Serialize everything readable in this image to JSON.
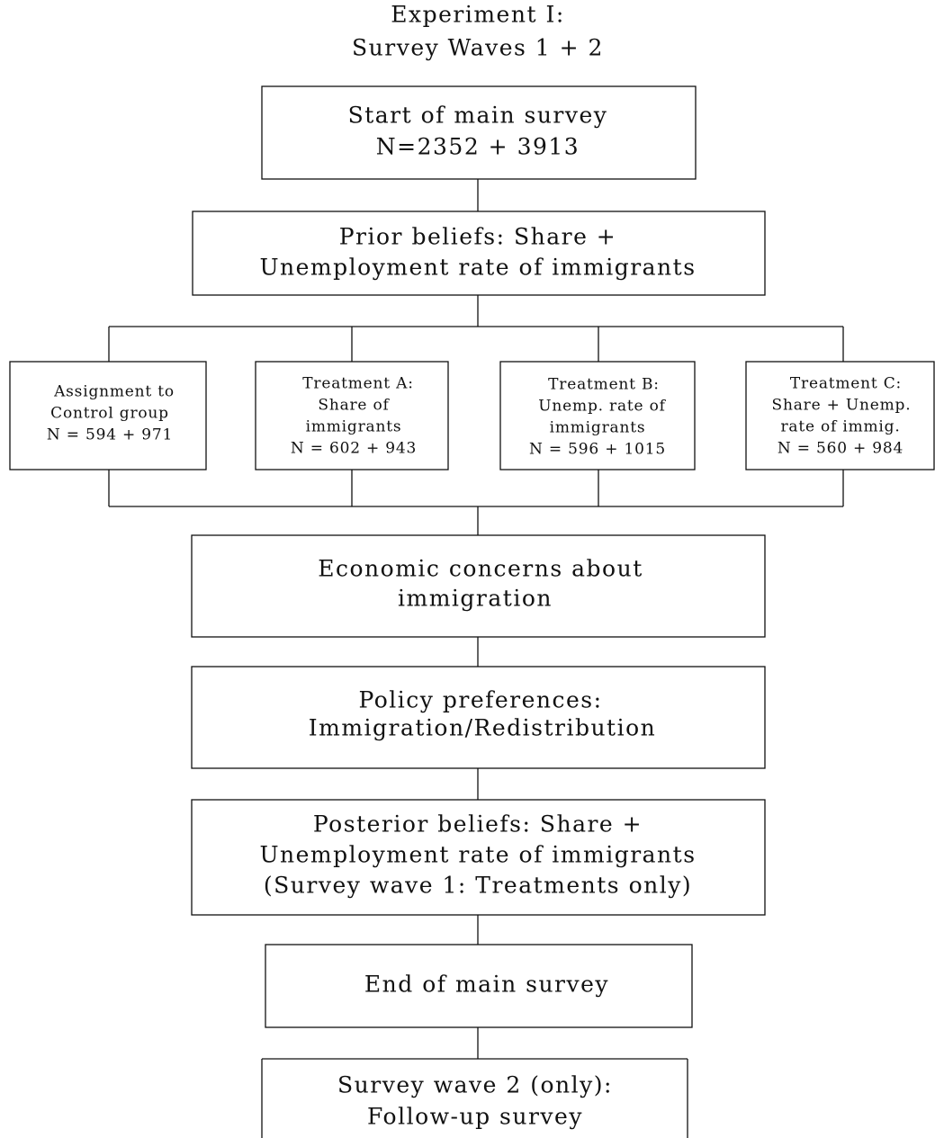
{
  "title": {
    "lines": [
      "Experiment I:",
      "Survey Waves 1 + 2"
    ]
  },
  "nodes": [
    {
      "lines": [
        "Start of main survey",
        "N=2352 + 3913"
      ]
    },
    {
      "lines": [
        "Prior beliefs: Share +",
        "Unemployment rate of immigrants"
      ]
    },
    {
      "lines": [
        "Assignment to",
        "Control group",
        "N = 594 + 971"
      ]
    },
    {
      "lines": [
        "Treatment A:",
        "Share of",
        "immigrants",
        "N = 602 + 943"
      ]
    },
    {
      "lines": [
        "Treatment B:",
        "Unemp. rate of",
        "immigrants",
        "N = 596 + 1015"
      ]
    },
    {
      "lines": [
        "Treatment C:",
        "Share + Unemp.",
        "rate of immig.",
        "N = 560 + 984"
      ]
    },
    {
      "lines": [
        "Economic concerns about",
        "immigration"
      ]
    },
    {
      "lines": [
        "Policy preferences:",
        "Immigration/Redistribution"
      ]
    },
    {
      "lines": [
        "Posterior beliefs: Share +",
        "Unemployment rate of immigrants",
        "(Survey wave 1: Treatments only)"
      ]
    },
    {
      "lines": [
        "End of main survey"
      ]
    },
    {
      "lines": [
        "Survey wave 2 (only):",
        "Follow-up survey"
      ]
    }
  ]
}
